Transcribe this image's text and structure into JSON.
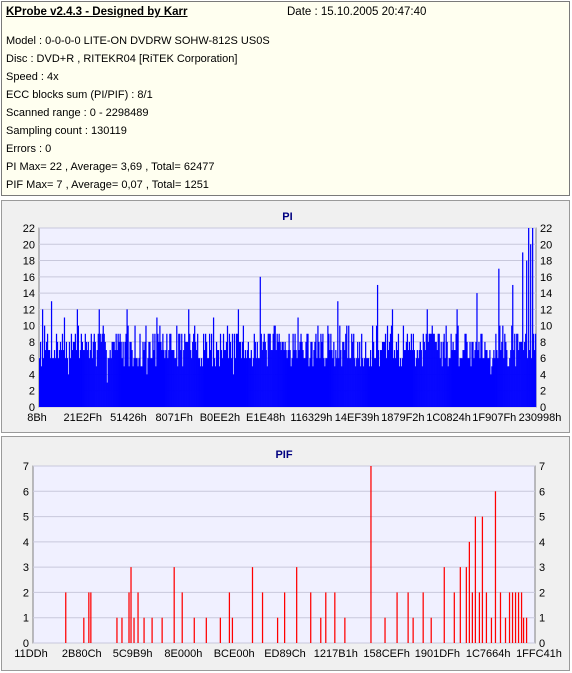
{
  "info": {
    "title": "KProbe v2.4.3 - Designed by Karr",
    "date": "Date : 15.10.2005 20:47:40",
    "lines": [
      "Model : 0-0-0-0 LITE-ON DVDRW SOHW-812S  US0S",
      "Disc : DVD+R , RITEKR04 [RiTEK Corporation]",
      "Speed : 4x",
      "ECC blocks sum (PI/PIF) : 8/1",
      "Scanned range : 0 - 2298489",
      "Sampling count : 130119",
      "Errors : 0",
      "PI Max= 22 , Average= 3,69 , Total= 62477",
      "PIF Max= 7 , Average= 0,07 , Total= 1251"
    ]
  },
  "colors": {
    "pi_bar": "#0000ff",
    "pif_bar": "#ff0000",
    "plot_bg": "#f0f0ff",
    "title": "#000080",
    "grid": "#c8c8dc"
  },
  "chart_data": [
    {
      "type": "bar",
      "title": "PI",
      "ylim": [
        0,
        22
      ],
      "yticks": [
        0,
        2,
        4,
        6,
        8,
        10,
        12,
        14,
        16,
        18,
        20,
        22
      ],
      "xtick_labels": [
        "8Bh",
        "21E2Fh",
        "51426h",
        "8071Fh",
        "B0EE2h",
        "E1E48h",
        "116329h",
        "14EF39h",
        "1879F2h",
        "1C0824h",
        "1F907Fh",
        "230998h"
      ],
      "grid": true,
      "baseline": 7.5,
      "variation": 2.3,
      "spikes": [
        [
          3,
          12
        ],
        [
          12,
          13
        ],
        [
          25,
          11
        ],
        [
          38,
          12
        ],
        [
          60,
          12
        ],
        [
          88,
          12
        ],
        [
          118,
          11
        ],
        [
          150,
          12
        ],
        [
          175,
          11
        ],
        [
          200,
          12
        ],
        [
          222,
          16
        ],
        [
          260,
          11
        ],
        [
          300,
          13
        ],
        [
          340,
          15
        ],
        [
          355,
          12
        ],
        [
          390,
          12
        ],
        [
          420,
          12
        ],
        [
          440,
          14
        ],
        [
          462,
          17
        ],
        [
          476,
          15
        ],
        [
          486,
          19
        ],
        [
          490,
          18
        ],
        [
          492,
          22
        ],
        [
          494,
          20
        ],
        [
          496,
          22
        ]
      ]
    },
    {
      "type": "bar",
      "title": "PIF",
      "ylim": [
        0,
        7
      ],
      "yticks": [
        0,
        1,
        2,
        3,
        4,
        5,
        6,
        7
      ],
      "xtick_labels": [
        "11DDh",
        "2B80Ch",
        "5C9B9h",
        "8E000h",
        "BCE00h",
        "ED89Ch",
        "1217B1h",
        "158CEFh",
        "1901DFh",
        "1C7664h",
        "1FFC41h"
      ],
      "grid": true,
      "spikes": [
        [
          32,
          2
        ],
        [
          50,
          1
        ],
        [
          55,
          2
        ],
        [
          57,
          2
        ],
        [
          83,
          1
        ],
        [
          88,
          1
        ],
        [
          95,
          2
        ],
        [
          97,
          3
        ],
        [
          100,
          1
        ],
        [
          104,
          2
        ],
        [
          110,
          1
        ],
        [
          118,
          1
        ],
        [
          128,
          1
        ],
        [
          140,
          3
        ],
        [
          148,
          2
        ],
        [
          160,
          1
        ],
        [
          172,
          1
        ],
        [
          186,
          1
        ],
        [
          195,
          2
        ],
        [
          198,
          1
        ],
        [
          218,
          3
        ],
        [
          228,
          2
        ],
        [
          243,
          1
        ],
        [
          250,
          2
        ],
        [
          262,
          3
        ],
        [
          276,
          2
        ],
        [
          286,
          1
        ],
        [
          291,
          2
        ],
        [
          300,
          2
        ],
        [
          310,
          1
        ],
        [
          336,
          7
        ],
        [
          350,
          1
        ],
        [
          362,
          2
        ],
        [
          373,
          2
        ],
        [
          378,
          1
        ],
        [
          388,
          2
        ],
        [
          396,
          1
        ],
        [
          409,
          3
        ],
        [
          419,
          2
        ],
        [
          425,
          3
        ],
        [
          431,
          3
        ],
        [
          434,
          4
        ],
        [
          437,
          2
        ],
        [
          440,
          5
        ],
        [
          444,
          2
        ],
        [
          447,
          5
        ],
        [
          451,
          2
        ],
        [
          456,
          1
        ],
        [
          460,
          6
        ],
        [
          465,
          2
        ],
        [
          470,
          1
        ],
        [
          474,
          2
        ],
        [
          477,
          2
        ],
        [
          480,
          2
        ],
        [
          483,
          2
        ],
        [
          486,
          2
        ],
        [
          488,
          1
        ],
        [
          491,
          1
        ]
      ]
    }
  ]
}
